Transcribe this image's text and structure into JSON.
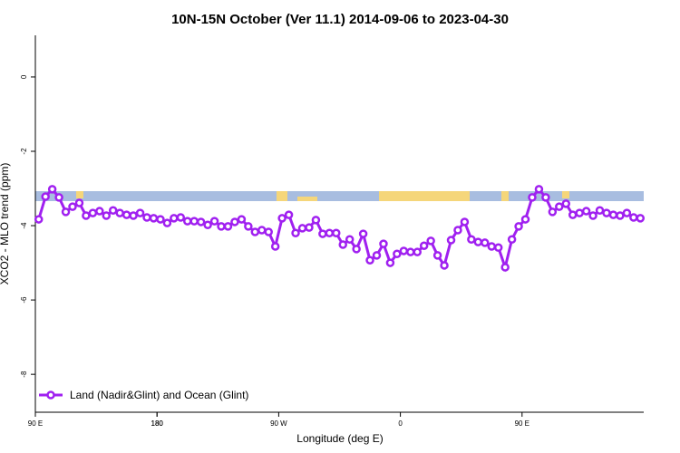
{
  "chart_data": {
    "type": "line",
    "title": "10N-15N October (Ver 11.1)   2014-09-06 to 2023-04-30",
    "xlabel": "Longitude (deg E)",
    "ylabel": "XCO2 - MLO trend (ppm)",
    "x": [
      92.5,
      97.5,
      102.5,
      107.5,
      112.5,
      117.5,
      122.5,
      127.5,
      132.5,
      137.5,
      142.5,
      147.5,
      152.5,
      157.5,
      162.5,
      167.5,
      172.5,
      177.5,
      182.5,
      187.5,
      192.5,
      197.5,
      202.5,
      207.5,
      212.5,
      217.5,
      222.5,
      227.5,
      232.5,
      237.5,
      242.5,
      247.5,
      252.5,
      257.5,
      262.5,
      267.5,
      272.5,
      277.5,
      282.5,
      287.5,
      292.5,
      297.5,
      302.5,
      307.5,
      312.5,
      317.5,
      322.5,
      327.5,
      332.5,
      337.5,
      342.5,
      347.5,
      352.5,
      357.5,
      362.5,
      367.5,
      372.5,
      377.5,
      382.5,
      387.5,
      392.5,
      397.5,
      402.5,
      407.5,
      412.5,
      417.5,
      422.5,
      427.5,
      432.5,
      437.5,
      442.5,
      447.5,
      452.5,
      457.5,
      462.5,
      467.5,
      472.5,
      477.5,
      482.5,
      487.5,
      492.5,
      497.5,
      502.5,
      507.5,
      512.5,
      517.5,
      522.5,
      527.5,
      532.5,
      537.5
    ],
    "series": [
      {
        "name": "Land (Nadir&Glint) and Ocean (Glint)",
        "color": "#a020f0",
        "values": [
          -3.83,
          -3.22,
          -3.02,
          -3.24,
          -3.63,
          -3.49,
          -3.39,
          -3.73,
          -3.66,
          -3.61,
          -3.73,
          -3.59,
          -3.66,
          -3.71,
          -3.73,
          -3.66,
          -3.78,
          -3.8,
          -3.83,
          -3.93,
          -3.8,
          -3.78,
          -3.88,
          -3.88,
          -3.9,
          -3.98,
          -3.88,
          -4.02,
          -4.02,
          -3.9,
          -3.83,
          -4.02,
          -4.17,
          -4.12,
          -4.17,
          -4.56,
          -3.8,
          -3.71,
          -4.2,
          -4.07,
          -4.05,
          -3.85,
          -4.22,
          -4.2,
          -4.2,
          -4.51,
          -4.37,
          -4.63,
          -4.22,
          -4.93,
          -4.8,
          -4.49,
          -5.0,
          -4.76,
          -4.68,
          -4.71,
          -4.71,
          -4.54,
          -4.41,
          -4.8,
          -5.07,
          -4.39,
          -4.12,
          -3.9,
          -4.37,
          -4.44,
          -4.46,
          -4.56,
          -4.59,
          -5.12,
          -4.37,
          -4.02,
          -3.83,
          -3.24,
          -3.02,
          -3.24,
          -3.63,
          -3.49,
          -3.41,
          -3.71,
          -3.66,
          -3.61,
          -3.73,
          -3.59,
          -3.66,
          -3.71,
          -3.73,
          -3.66,
          -3.78,
          -3.8
        ]
      }
    ],
    "xlim": [
      90,
      540
    ],
    "xticks": [
      {
        "value": 90,
        "label": "90 E"
      },
      180,
      {
        "value": 270,
        "label": "90 W"
      },
      {
        "value": 360,
        "label": "0"
      },
      {
        "value": 450,
        "label": "90 E"
      },
      180
    ],
    "ylim": [
      -9.02,
      1.12
    ],
    "yticks": [
      0,
      -2,
      -4,
      -6,
      -8
    ],
    "legend": "bottom-left"
  }
}
